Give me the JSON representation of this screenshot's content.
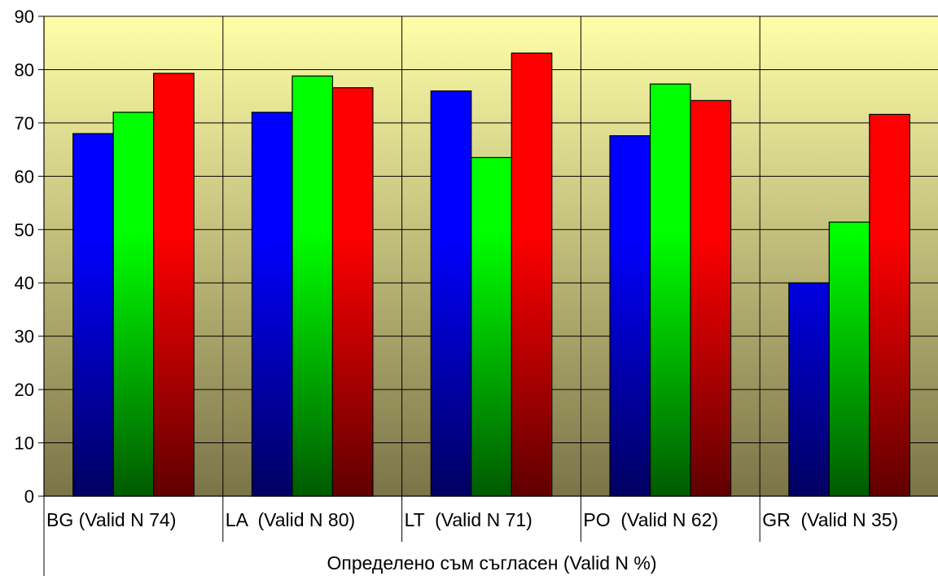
{
  "chart_data": {
    "type": "bar",
    "categories": [
      "BG (Valid N 74)",
      "LA  (Valid N 80)",
      "LT  (Valid N 71)",
      "PO  (Valid N 62)",
      "GR  (Valid N 35)"
    ],
    "series": [
      {
        "values": [
          68,
          72,
          76,
          67.6,
          40
        ],
        "color": "#0000ff",
        "color_dark": "#000060"
      },
      {
        "values": [
          72,
          78.8,
          63.5,
          77.3,
          51.4
        ],
        "color": "#00ff00",
        "color_dark": "#005a00"
      },
      {
        "values": [
          79.3,
          76.6,
          83.1,
          74.2,
          71.6
        ],
        "color": "#ff0000",
        "color_dark": "#600000"
      }
    ],
    "xlabel": "Определено съм съгласен (Valid N %)",
    "ylabel": "",
    "ylim": [
      0,
      90
    ],
    "yticks": [
      0,
      10,
      20,
      30,
      40,
      50,
      60,
      70,
      80,
      90
    ],
    "grid": true,
    "background_top": "#ffffa8",
    "background_bottom": "#7a7448"
  }
}
